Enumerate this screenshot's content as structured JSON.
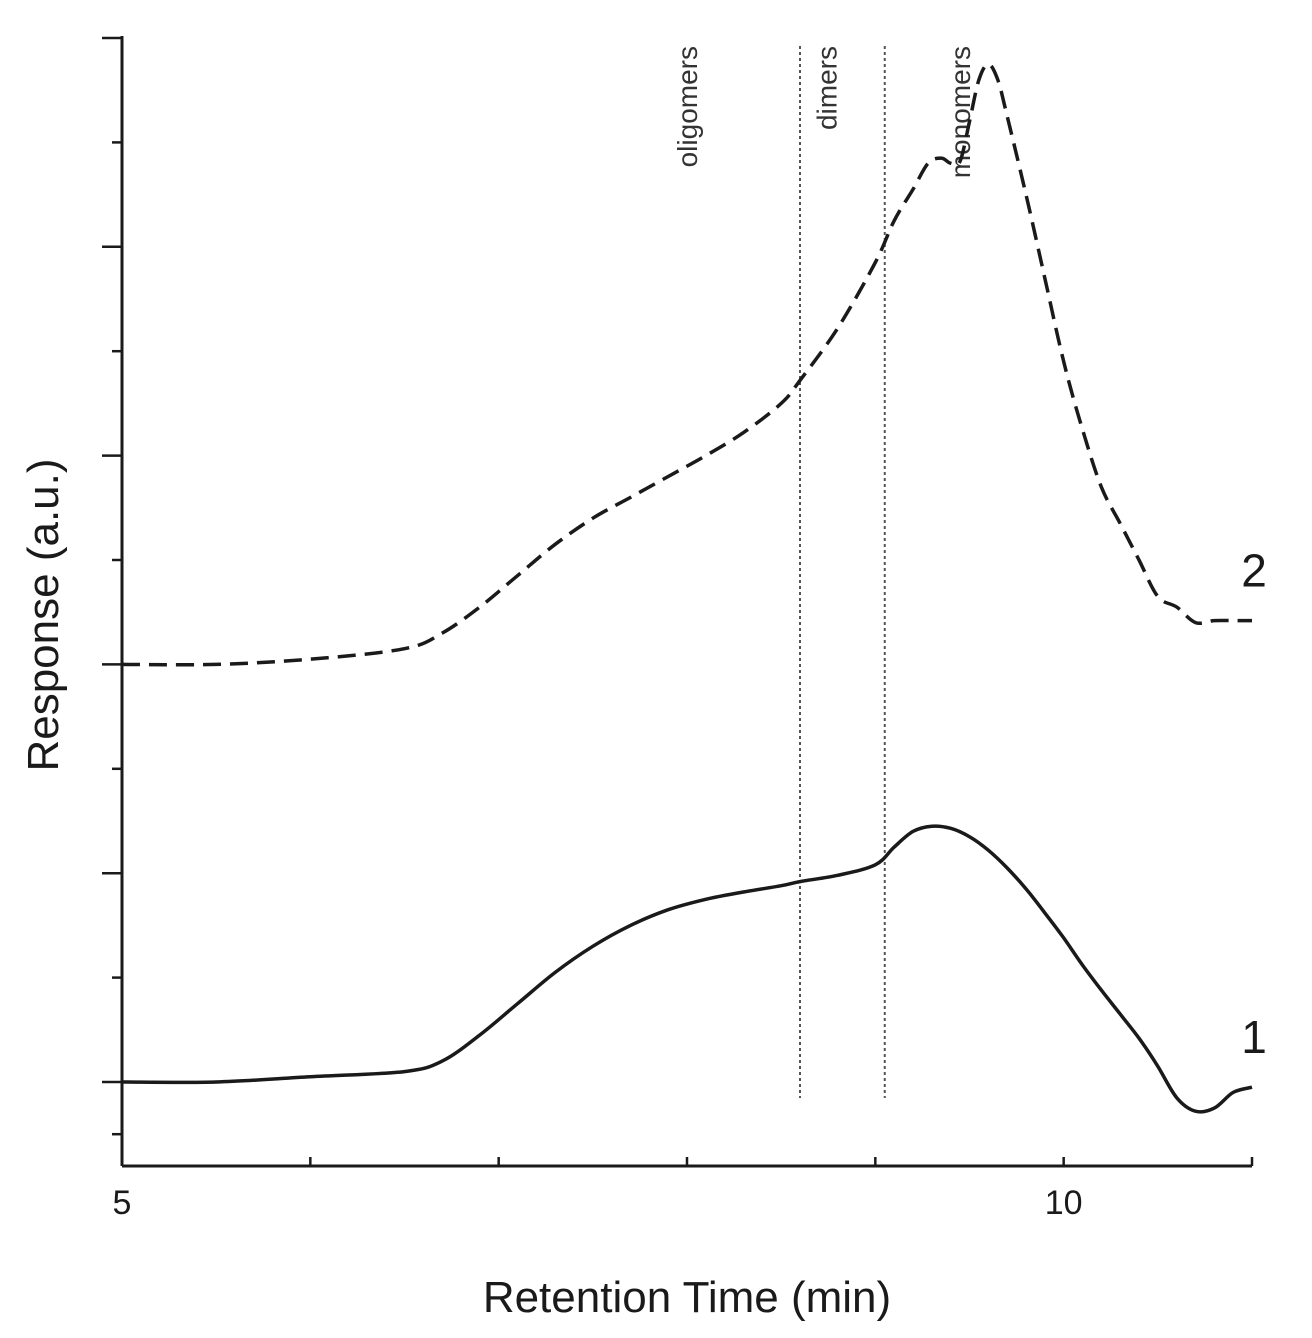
{
  "chart_data": {
    "type": "line",
    "title": "",
    "xlabel": "Retention Time (min)",
    "ylabel": "Response (a.u.)",
    "xlim": [
      5,
      11
    ],
    "ylim": [
      -0.8,
      10
    ],
    "x_ticks": [
      5,
      6,
      7,
      8,
      9,
      10,
      11
    ],
    "x_tick_labels": [
      {
        "value": 5,
        "label": "5"
      },
      {
        "value": 10,
        "label": "10"
      }
    ],
    "y_major_ticks": [
      0,
      2,
      4,
      6,
      8,
      10
    ],
    "y_minor_ticks": [
      -0.5,
      1,
      3,
      5,
      7,
      9
    ],
    "grid": false,
    "regions": [
      {
        "label": "oligomers",
        "x_label": 8.0
      },
      {
        "label": "dimers",
        "x_label": 8.74
      },
      {
        "label": "monomers",
        "x_label": 9.45
      }
    ],
    "region_boundaries": [
      8.6,
      9.05
    ],
    "series": [
      {
        "name": "1",
        "style": "solid",
        "x": [
          5.0,
          5.5,
          6.0,
          6.5,
          6.7,
          6.9,
          7.1,
          7.3,
          7.5,
          7.7,
          7.9,
          8.1,
          8.3,
          8.5,
          8.6,
          8.8,
          9.0,
          9.1,
          9.2,
          9.3,
          9.4,
          9.5,
          9.6,
          9.7,
          9.8,
          9.9,
          10.0,
          10.1,
          10.2,
          10.3,
          10.4,
          10.5,
          10.6,
          10.7,
          10.8,
          10.9,
          11.0
        ],
        "y": [
          0.0,
          0.0,
          0.05,
          0.1,
          0.2,
          0.45,
          0.75,
          1.05,
          1.3,
          1.5,
          1.65,
          1.75,
          1.82,
          1.88,
          1.92,
          1.98,
          2.08,
          2.25,
          2.4,
          2.45,
          2.43,
          2.35,
          2.22,
          2.05,
          1.85,
          1.62,
          1.38,
          1.12,
          0.88,
          0.65,
          0.42,
          0.15,
          -0.15,
          -0.28,
          -0.25,
          -0.1,
          -0.05
        ]
      },
      {
        "name": "2",
        "style": "dashed",
        "x": [
          5.0,
          5.5,
          6.0,
          6.5,
          6.7,
          6.9,
          7.1,
          7.3,
          7.5,
          7.7,
          7.9,
          8.1,
          8.3,
          8.5,
          8.6,
          8.8,
          9.0,
          9.1,
          9.2,
          9.28,
          9.35,
          9.4,
          9.45,
          9.5,
          9.55,
          9.6,
          9.65,
          9.7,
          9.8,
          9.9,
          10.0,
          10.1,
          10.2,
          10.3,
          10.4,
          10.5,
          10.6,
          10.7,
          10.8,
          10.9,
          11.0
        ],
        "y": [
          4.0,
          4.0,
          4.05,
          4.15,
          4.3,
          4.55,
          4.85,
          5.15,
          5.4,
          5.6,
          5.8,
          6.0,
          6.22,
          6.5,
          6.72,
          7.22,
          7.85,
          8.25,
          8.55,
          8.8,
          8.85,
          8.8,
          8.82,
          9.2,
          9.6,
          9.75,
          9.6,
          9.25,
          8.5,
          7.7,
          6.9,
          6.25,
          5.7,
          5.35,
          5.0,
          4.65,
          4.55,
          4.4,
          4.42,
          4.42,
          4.42
        ]
      }
    ]
  }
}
